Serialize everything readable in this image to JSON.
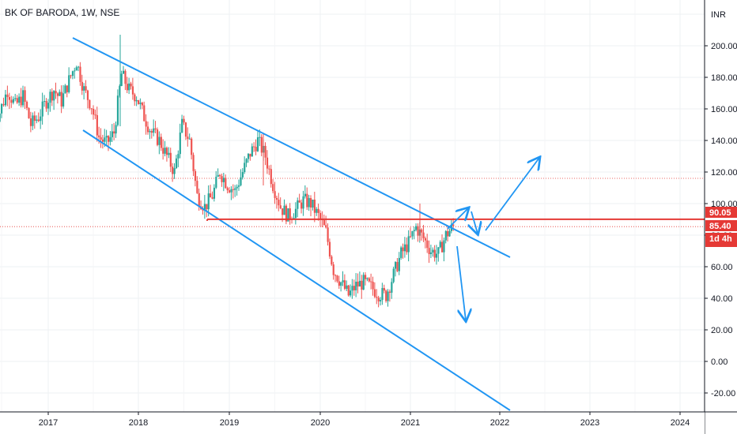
{
  "header": {
    "symbol_line": "BK OF BARODA, 1W, NSE",
    "currency": "INR"
  },
  "price_tags": {
    "level": "90.05",
    "last": "85.40",
    "countdown": "1d 4h"
  },
  "colors": {
    "up": "#26a69a",
    "down": "#ef5350",
    "trend": "#2196f3",
    "level": "#e53935"
  },
  "chart_data": {
    "type": "candlestick",
    "x_ticks": [
      "2017",
      "2018",
      "2019",
      "2020",
      "2021",
      "2022",
      "2023",
      "2024"
    ],
    "y_ticks": [
      "200.00",
      "180.00",
      "160.00",
      "140.00",
      "120.00",
      "100.00",
      "80.00",
      "60.00",
      "40.00",
      "20.00",
      "0.00",
      "-20.00"
    ],
    "ylim": [
      -30,
      225
    ],
    "xlim": [
      "2016-06",
      "2024-06"
    ],
    "grid": true,
    "horizontal_level": 90.05,
    "last_price": 85.4,
    "dotted_level": 116,
    "closes": [
      {
        "date": "2016-06",
        "close": 150
      },
      {
        "date": "2016-07",
        "close": 158
      },
      {
        "date": "2016-08",
        "close": 172
      },
      {
        "date": "2016-09",
        "close": 162
      },
      {
        "date": "2016-10",
        "close": 168
      },
      {
        "date": "2016-11",
        "close": 150
      },
      {
        "date": "2016-12",
        "close": 155
      },
      {
        "date": "2017-01",
        "close": 165
      },
      {
        "date": "2017-02",
        "close": 172
      },
      {
        "date": "2017-03",
        "close": 165
      },
      {
        "date": "2017-04",
        "close": 178
      },
      {
        "date": "2017-05",
        "close": 190
      },
      {
        "date": "2017-06",
        "close": 172
      },
      {
        "date": "2017-07",
        "close": 162
      },
      {
        "date": "2017-08",
        "close": 142
      },
      {
        "date": "2017-09",
        "close": 138
      },
      {
        "date": "2017-10",
        "close": 145
      },
      {
        "date": "2017-11",
        "close": 182
      },
      {
        "date": "2017-12",
        "close": 172
      },
      {
        "date": "2018-01",
        "close": 168
      },
      {
        "date": "2018-02",
        "close": 155
      },
      {
        "date": "2018-03",
        "close": 145
      },
      {
        "date": "2018-04",
        "close": 140
      },
      {
        "date": "2018-05",
        "close": 130
      },
      {
        "date": "2018-06",
        "close": 120
      },
      {
        "date": "2018-07",
        "close": 150
      },
      {
        "date": "2018-08",
        "close": 140
      },
      {
        "date": "2018-09",
        "close": 105
      },
      {
        "date": "2018-10",
        "close": 98
      },
      {
        "date": "2018-11",
        "close": 105
      },
      {
        "date": "2018-12",
        "close": 120
      },
      {
        "date": "2019-01",
        "close": 112
      },
      {
        "date": "2019-02",
        "close": 108
      },
      {
        "date": "2019-03",
        "close": 120
      },
      {
        "date": "2019-04",
        "close": 132
      },
      {
        "date": "2019-05",
        "close": 140
      },
      {
        "date": "2019-06",
        "close": 130
      },
      {
        "date": "2019-07",
        "close": 112
      },
      {
        "date": "2019-08",
        "close": 98
      },
      {
        "date": "2019-09",
        "close": 92
      },
      {
        "date": "2019-10",
        "close": 96
      },
      {
        "date": "2019-11",
        "close": 102
      },
      {
        "date": "2019-12",
        "close": 100
      },
      {
        "date": "2020-01",
        "close": 92
      },
      {
        "date": "2020-02",
        "close": 82
      },
      {
        "date": "2020-03",
        "close": 58
      },
      {
        "date": "2020-04",
        "close": 50
      },
      {
        "date": "2020-05",
        "close": 42
      },
      {
        "date": "2020-06",
        "close": 48
      },
      {
        "date": "2020-07",
        "close": 50
      },
      {
        "date": "2020-08",
        "close": 47
      },
      {
        "date": "2020-09",
        "close": 43
      },
      {
        "date": "2020-10",
        "close": 42
      },
      {
        "date": "2020-11",
        "close": 55
      },
      {
        "date": "2020-12",
        "close": 68
      },
      {
        "date": "2021-01",
        "close": 75
      },
      {
        "date": "2021-02",
        "close": 85
      },
      {
        "date": "2021-03",
        "close": 78
      },
      {
        "date": "2021-04",
        "close": 70
      },
      {
        "date": "2021-05",
        "close": 68
      },
      {
        "date": "2021-06",
        "close": 80
      },
      {
        "date": "2021-07",
        "close": 85.4
      }
    ]
  }
}
